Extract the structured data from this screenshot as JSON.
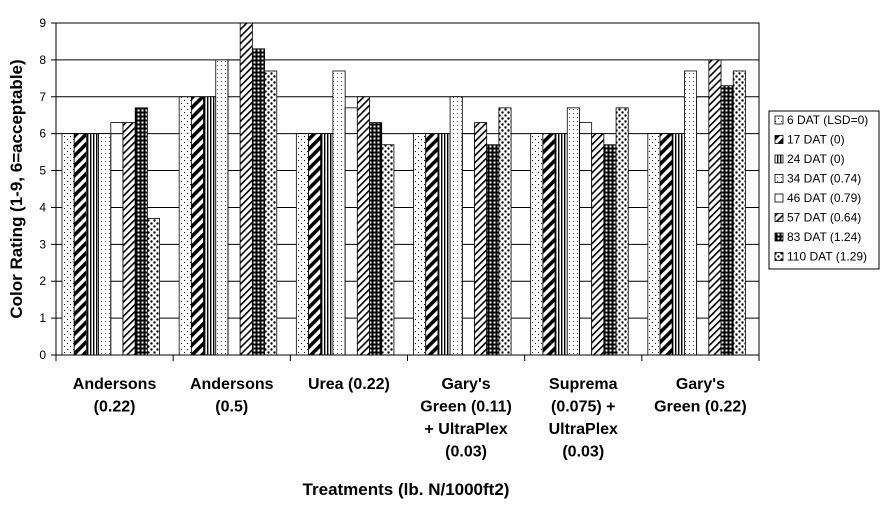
{
  "chart_data": {
    "type": "bar",
    "xlabel": "Treatments (lb. N/1000ft2)",
    "ylabel": "Color Rating (1-9, 6=acceptable)",
    "ylim": [
      0,
      9
    ],
    "yticks": [
      "0",
      "1",
      "2",
      "3",
      "4",
      "5",
      "6",
      "7",
      "8",
      "9"
    ],
    "grid": "horizontal",
    "legend_position": "right",
    "categories": [
      [
        "Andersons",
        "(0.22)"
      ],
      [
        "Andersons",
        "(0.5)"
      ],
      [
        "Urea (0.22)"
      ],
      [
        "Gary's",
        "Green (0.11)",
        "+ UltraPlex",
        "(0.03)"
      ],
      [
        "Suprema",
        "(0.075) +",
        "UltraPlex",
        "(0.03)"
      ],
      [
        "Gary's",
        "Green (0.22)"
      ]
    ],
    "series": [
      {
        "name": "6 DAT (LSD=0)",
        "pattern": "dots-sparse",
        "values": [
          6,
          7,
          6,
          6,
          6,
          6
        ]
      },
      {
        "name": "17 DAT (0)",
        "pattern": "diag-bold",
        "values": [
          6,
          7,
          6,
          6,
          6,
          6
        ]
      },
      {
        "name": "24 DAT (0)",
        "pattern": "vertical",
        "values": [
          6,
          7,
          6,
          6,
          6,
          6
        ]
      },
      {
        "name": "34 DAT (0.74)",
        "pattern": "dots-fine",
        "values": [
          6,
          8,
          7.7,
          7,
          6.7,
          7.7
        ]
      },
      {
        "name": "46 DAT (0.79)",
        "pattern": "solid-dark",
        "values": [
          6.3,
          8,
          6.7,
          6,
          6.3,
          7
        ]
      },
      {
        "name": "57 DAT (0.64)",
        "pattern": "diag-light",
        "values": [
          6.3,
          9,
          7,
          6.3,
          6,
          8
        ]
      },
      {
        "name": "83 DAT (1.24)",
        "pattern": "grid",
        "values": [
          6.7,
          8.3,
          6.3,
          5.7,
          5.7,
          7.3
        ]
      },
      {
        "name": "110 DAT (1.29)",
        "pattern": "dots-coarse",
        "values": [
          3.7,
          7.7,
          5.7,
          6.7,
          6.7,
          7.7
        ]
      }
    ]
  }
}
